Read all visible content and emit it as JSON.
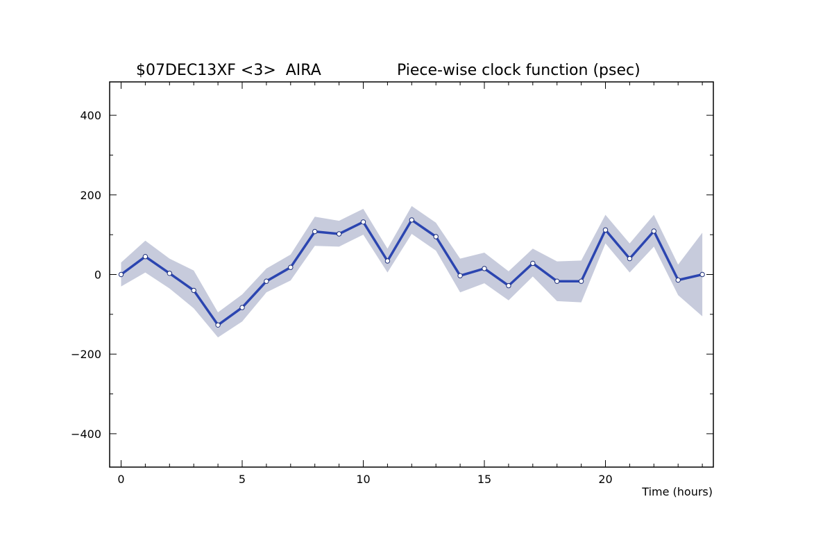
{
  "chart_data": {
    "type": "line",
    "title_left": "$07DEC13XF <3>  AIRA",
    "title_right": "Piece-wise clock function (psec)",
    "xlabel": "Time (hours)",
    "ylabel": "",
    "xlim": [
      -0.5,
      24.5
    ],
    "ylim": [
      -485,
      485
    ],
    "xticks": [
      0,
      5,
      10,
      15,
      20
    ],
    "yticks": [
      -400,
      -200,
      0,
      200,
      400
    ],
    "xtick_labels": [
      "0",
      "5",
      "10",
      "15",
      "20"
    ],
    "ytick_labels": [
      "−400",
      "−200",
      "0",
      "200",
      "400"
    ],
    "grid": false,
    "legend": "none",
    "colors": {
      "line": "#2b45b0",
      "band": "#c7cbdc",
      "marker_fill": "#ffffff"
    },
    "series": [
      {
        "x": [
          0,
          1,
          2,
          3,
          4,
          5,
          6,
          7,
          8,
          9,
          10,
          11,
          12,
          13,
          14,
          15,
          16,
          17,
          18,
          19,
          20,
          21,
          22,
          23,
          24
        ],
        "values": [
          0,
          45,
          3,
          -40,
          -127,
          -83,
          -17,
          18,
          108,
          102,
          132,
          34,
          137,
          95,
          -3,
          15,
          -28,
          28,
          -17,
          -17,
          112,
          40,
          109,
          -14,
          0
        ],
        "band_upper": [
          30,
          85,
          40,
          10,
          -95,
          -50,
          15,
          50,
          145,
          135,
          165,
          65,
          172,
          130,
          40,
          55,
          8,
          65,
          33,
          35,
          150,
          78,
          150,
          25,
          105
        ],
        "band_lower": [
          -30,
          5,
          -35,
          -85,
          -158,
          -118,
          -45,
          -15,
          72,
          70,
          100,
          5,
          102,
          60,
          -45,
          -22,
          -65,
          -5,
          -67,
          -70,
          78,
          5,
          70,
          -52,
          -105
        ]
      }
    ]
  }
}
